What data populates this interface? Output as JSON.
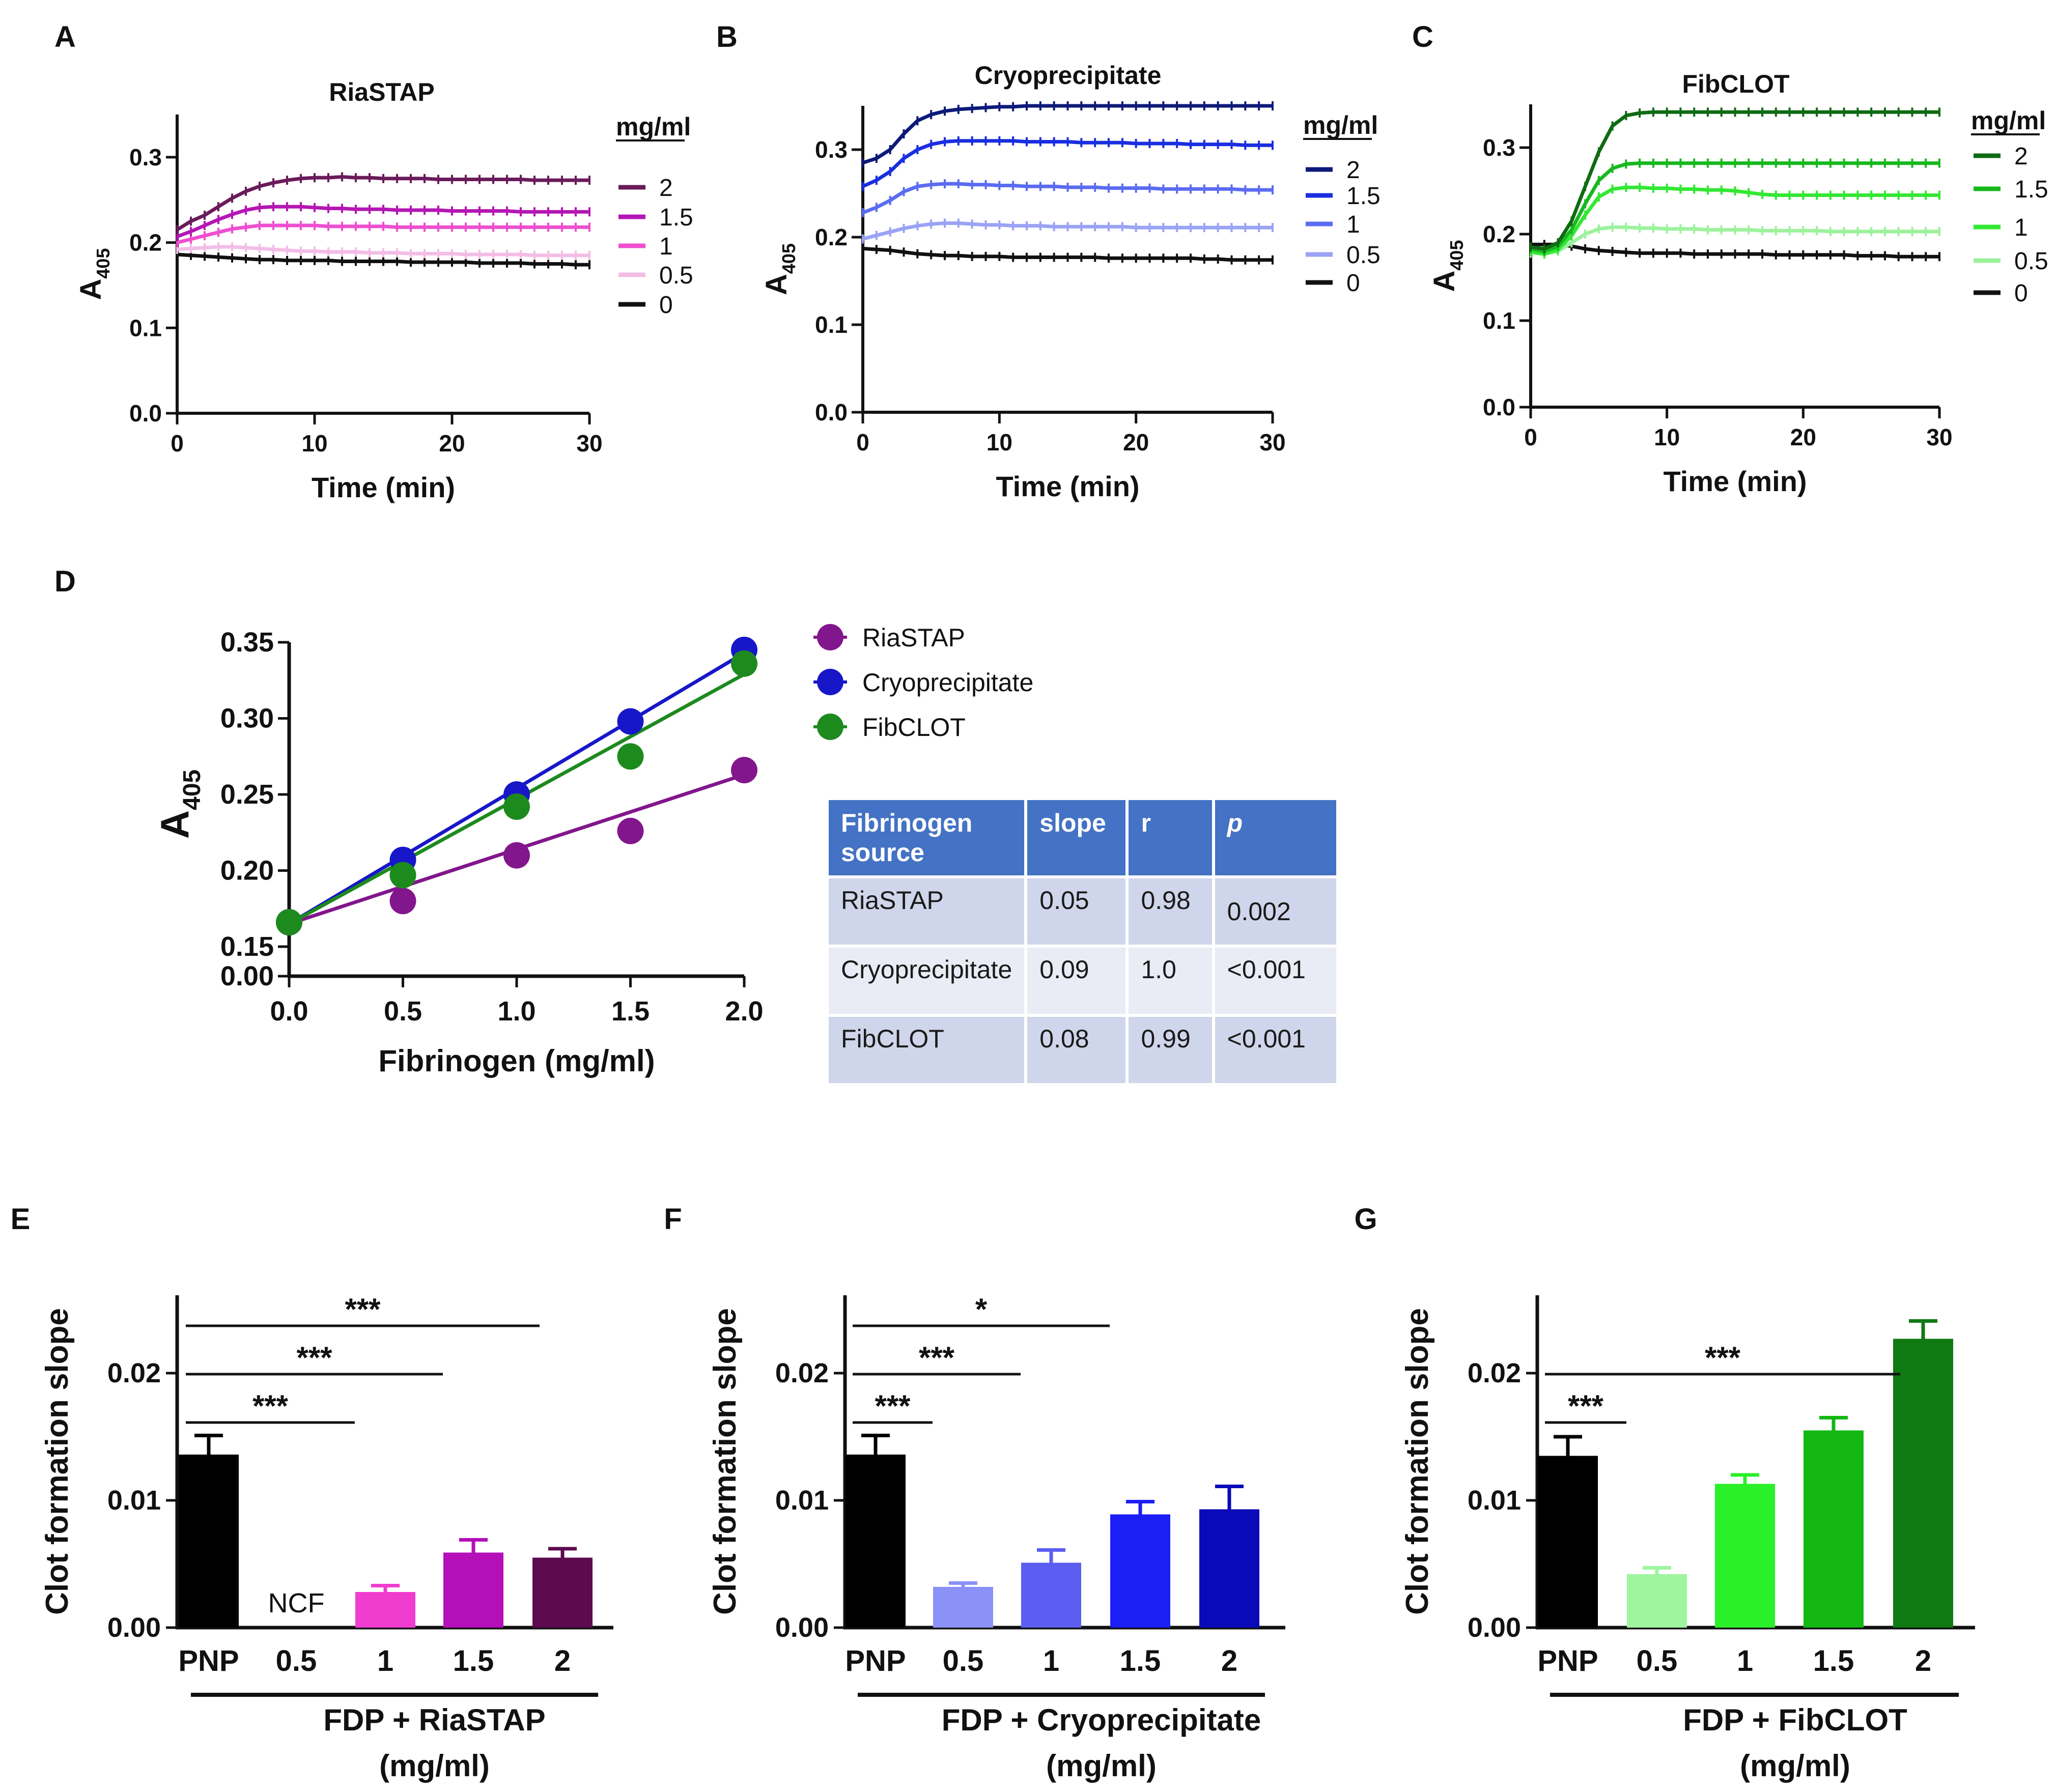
{
  "panel_letters": [
    "A",
    "B",
    "C",
    "D",
    "E",
    "F",
    "G"
  ],
  "chart_data": [
    {
      "id": "A",
      "type": "line",
      "title": "RiaSTAP",
      "xlabel": "Time (min)",
      "ylabel": "A405",
      "xlim": [
        0,
        30
      ],
      "ylim": [
        0,
        0.35
      ],
      "xticks": [
        "0",
        "10",
        "20",
        "30"
      ],
      "yticks": [
        "0.0",
        "0.1",
        "0.2",
        "0.3"
      ],
      "legend_title": "mg/ml",
      "x": [
        0,
        1,
        2,
        3,
        4,
        5,
        6,
        7,
        8,
        9,
        10,
        11,
        12,
        13,
        14,
        15,
        16,
        17,
        18,
        19,
        20,
        21,
        22,
        23,
        24,
        25,
        26,
        27,
        28,
        29,
        30
      ],
      "series": [
        {
          "name": "2",
          "color": "#6a1b5a",
          "values": [
            0.215,
            0.225,
            0.232,
            0.242,
            0.252,
            0.26,
            0.266,
            0.27,
            0.273,
            0.275,
            0.276,
            0.276,
            0.277,
            0.276,
            0.276,
            0.275,
            0.275,
            0.275,
            0.275,
            0.274,
            0.274,
            0.274,
            0.274,
            0.274,
            0.274,
            0.274,
            0.273,
            0.273,
            0.273,
            0.273,
            0.273
          ]
        },
        {
          "name": "1.5",
          "color": "#b416b4",
          "values": [
            0.207,
            0.213,
            0.22,
            0.227,
            0.233,
            0.238,
            0.241,
            0.242,
            0.242,
            0.242,
            0.241,
            0.24,
            0.24,
            0.239,
            0.239,
            0.239,
            0.238,
            0.238,
            0.238,
            0.238,
            0.237,
            0.237,
            0.237,
            0.237,
            0.237,
            0.236,
            0.236,
            0.236,
            0.236,
            0.236,
            0.236
          ]
        },
        {
          "name": "1",
          "color": "#ee4fcf",
          "values": [
            0.2,
            0.204,
            0.208,
            0.212,
            0.216,
            0.218,
            0.22,
            0.22,
            0.22,
            0.22,
            0.22,
            0.219,
            0.219,
            0.219,
            0.219,
            0.219,
            0.218,
            0.218,
            0.218,
            0.218,
            0.218,
            0.218,
            0.218,
            0.218,
            0.218,
            0.218,
            0.218,
            0.218,
            0.218,
            0.218,
            0.218
          ]
        },
        {
          "name": "0.5",
          "color": "#f3bde6",
          "values": [
            0.192,
            0.193,
            0.194,
            0.195,
            0.195,
            0.194,
            0.193,
            0.192,
            0.191,
            0.19,
            0.19,
            0.189,
            0.189,
            0.189,
            0.188,
            0.188,
            0.188,
            0.187,
            0.187,
            0.187,
            0.187,
            0.186,
            0.186,
            0.186,
            0.186,
            0.186,
            0.185,
            0.185,
            0.185,
            0.185,
            0.185
          ]
        },
        {
          "name": "0",
          "color": "#111111",
          "values": [
            0.186,
            0.185,
            0.184,
            0.183,
            0.182,
            0.181,
            0.18,
            0.18,
            0.179,
            0.179,
            0.179,
            0.179,
            0.178,
            0.178,
            0.178,
            0.178,
            0.178,
            0.177,
            0.177,
            0.177,
            0.177,
            0.177,
            0.176,
            0.176,
            0.176,
            0.176,
            0.175,
            0.175,
            0.175,
            0.174,
            0.174
          ]
        }
      ]
    },
    {
      "id": "B",
      "type": "line",
      "title": "Cryoprecipitate",
      "xlabel": "Time (min)",
      "ylabel": "A405",
      "xlim": [
        0,
        30
      ],
      "ylim": [
        0,
        0.35
      ],
      "xticks": [
        "0",
        "10",
        "20",
        "30"
      ],
      "yticks": [
        "0.0",
        "0.1",
        "0.2",
        "0.3"
      ],
      "legend_title": "mg/ml",
      "x": [
        0,
        1,
        2,
        3,
        4,
        5,
        6,
        7,
        8,
        9,
        10,
        11,
        12,
        13,
        14,
        15,
        16,
        17,
        18,
        19,
        20,
        21,
        22,
        23,
        24,
        25,
        26,
        27,
        28,
        29,
        30
      ],
      "series": [
        {
          "name": "2",
          "color": "#0d1a7a",
          "values": [
            0.285,
            0.29,
            0.3,
            0.318,
            0.333,
            0.34,
            0.344,
            0.346,
            0.347,
            0.348,
            0.349,
            0.349,
            0.35,
            0.35,
            0.35,
            0.35,
            0.35,
            0.35,
            0.35,
            0.35,
            0.35,
            0.35,
            0.35,
            0.35,
            0.35,
            0.35,
            0.35,
            0.35,
            0.35,
            0.35,
            0.35
          ]
        },
        {
          "name": "1.5",
          "color": "#1a2ee0",
          "values": [
            0.258,
            0.265,
            0.275,
            0.29,
            0.3,
            0.306,
            0.309,
            0.31,
            0.31,
            0.31,
            0.31,
            0.31,
            0.309,
            0.309,
            0.309,
            0.309,
            0.308,
            0.308,
            0.308,
            0.308,
            0.307,
            0.307,
            0.307,
            0.307,
            0.306,
            0.306,
            0.306,
            0.306,
            0.305,
            0.305,
            0.305
          ]
        },
        {
          "name": "1",
          "color": "#5a6cf2",
          "values": [
            0.228,
            0.234,
            0.242,
            0.252,
            0.258,
            0.26,
            0.261,
            0.261,
            0.26,
            0.26,
            0.259,
            0.259,
            0.258,
            0.258,
            0.258,
            0.257,
            0.257,
            0.257,
            0.256,
            0.256,
            0.256,
            0.256,
            0.255,
            0.255,
            0.255,
            0.255,
            0.255,
            0.255,
            0.254,
            0.254,
            0.254
          ]
        },
        {
          "name": "0.5",
          "color": "#9aa3f5",
          "values": [
            0.198,
            0.202,
            0.206,
            0.21,
            0.213,
            0.215,
            0.216,
            0.216,
            0.215,
            0.214,
            0.214,
            0.213,
            0.213,
            0.213,
            0.212,
            0.212,
            0.212,
            0.212,
            0.212,
            0.212,
            0.211,
            0.211,
            0.211,
            0.211,
            0.211,
            0.211,
            0.211,
            0.211,
            0.211,
            0.211,
            0.211
          ]
        },
        {
          "name": "0",
          "color": "#111111",
          "values": [
            0.187,
            0.186,
            0.185,
            0.183,
            0.181,
            0.18,
            0.179,
            0.179,
            0.178,
            0.178,
            0.178,
            0.177,
            0.177,
            0.177,
            0.177,
            0.177,
            0.177,
            0.177,
            0.176,
            0.176,
            0.176,
            0.176,
            0.176,
            0.176,
            0.176,
            0.175,
            0.175,
            0.174,
            0.174,
            0.174,
            0.174
          ]
        }
      ]
    },
    {
      "id": "C",
      "type": "line",
      "title": "FibCLOT",
      "xlabel": "Time (min)",
      "ylabel": "A405",
      "xlim": [
        0,
        30
      ],
      "ylim": [
        0,
        0.35
      ],
      "xticks": [
        "0",
        "10",
        "20",
        "30"
      ],
      "yticks": [
        "0.0",
        "0.1",
        "0.2",
        "0.3"
      ],
      "legend_title": "mg/ml",
      "x": [
        0,
        1,
        2,
        3,
        4,
        5,
        6,
        7,
        8,
        9,
        10,
        11,
        12,
        13,
        14,
        15,
        16,
        17,
        18,
        19,
        20,
        21,
        22,
        23,
        24,
        25,
        26,
        27,
        28,
        29,
        30
      ],
      "series": [
        {
          "name": "2",
          "color": "#0e6b12",
          "values": [
            0.185,
            0.183,
            0.19,
            0.215,
            0.255,
            0.295,
            0.325,
            0.337,
            0.34,
            0.341,
            0.341,
            0.341,
            0.341,
            0.341,
            0.341,
            0.341,
            0.341,
            0.341,
            0.341,
            0.341,
            0.341,
            0.341,
            0.341,
            0.341,
            0.341,
            0.341,
            0.341,
            0.341,
            0.341,
            0.341,
            0.341
          ]
        },
        {
          "name": "1.5",
          "color": "#18b81e",
          "values": [
            0.183,
            0.18,
            0.186,
            0.205,
            0.235,
            0.262,
            0.276,
            0.281,
            0.282,
            0.282,
            0.282,
            0.282,
            0.282,
            0.282,
            0.282,
            0.282,
            0.282,
            0.282,
            0.282,
            0.282,
            0.282,
            0.282,
            0.282,
            0.282,
            0.282,
            0.282,
            0.282,
            0.282,
            0.282,
            0.282,
            0.282
          ]
        },
        {
          "name": "1",
          "color": "#32e832",
          "values": [
            0.18,
            0.177,
            0.182,
            0.198,
            0.222,
            0.243,
            0.252,
            0.254,
            0.254,
            0.253,
            0.253,
            0.252,
            0.252,
            0.251,
            0.251,
            0.25,
            0.248,
            0.246,
            0.245,
            0.245,
            0.245,
            0.245,
            0.245,
            0.245,
            0.245,
            0.245,
            0.245,
            0.245,
            0.245,
            0.245,
            0.245
          ]
        },
        {
          "name": "0.5",
          "color": "#9cf29c",
          "values": [
            0.178,
            0.177,
            0.18,
            0.19,
            0.2,
            0.206,
            0.208,
            0.208,
            0.207,
            0.207,
            0.206,
            0.206,
            0.206,
            0.205,
            0.205,
            0.205,
            0.205,
            0.204,
            0.204,
            0.204,
            0.204,
            0.204,
            0.203,
            0.203,
            0.203,
            0.203,
            0.203,
            0.203,
            0.203,
            0.203,
            0.203
          ]
        },
        {
          "name": "0",
          "color": "#111111",
          "values": [
            0.188,
            0.188,
            0.188,
            0.186,
            0.183,
            0.181,
            0.18,
            0.179,
            0.178,
            0.178,
            0.178,
            0.178,
            0.177,
            0.177,
            0.177,
            0.177,
            0.177,
            0.177,
            0.176,
            0.176,
            0.176,
            0.176,
            0.176,
            0.176,
            0.175,
            0.175,
            0.175,
            0.174,
            0.174,
            0.174,
            0.174
          ]
        }
      ]
    },
    {
      "id": "D",
      "type": "scatter",
      "xlabel": "Fibrinogen (mg/ml)",
      "ylabel": "A405",
      "xlim": [
        0,
        2
      ],
      "ylim": [
        0,
        0.35
      ],
      "xticks": [
        "0.0",
        "0.5",
        "1.0",
        "1.5",
        "2.0"
      ],
      "yticks": [
        "0.00",
        "0.15",
        "0.20",
        "0.25",
        "0.30",
        "0.35"
      ],
      "x": [
        0,
        0.5,
        1,
        1.5,
        2
      ],
      "series": [
        {
          "name": "RiaSTAP",
          "color": "#82168c",
          "values": [
            0.166,
            0.18,
            0.21,
            0.226,
            0.266
          ],
          "fit": [
            0.165,
            0.263
          ]
        },
        {
          "name": "Cryoprecipitate",
          "color": "#1717c9",
          "values": [
            0.166,
            0.207,
            0.25,
            0.298,
            0.345
          ],
          "fit": [
            0.165,
            0.343
          ]
        },
        {
          "name": "FibCLOT",
          "color": "#1d8a1d",
          "values": [
            0.166,
            0.197,
            0.242,
            0.275,
            0.336
          ],
          "fit": [
            0.165,
            0.329
          ]
        }
      ],
      "table": {
        "headers": [
          "Fibrinogen source",
          "slope",
          "r",
          "p"
        ],
        "rows": [
          [
            "RiaSTAP",
            "0.05",
            "0.98",
            "0.002"
          ],
          [
            "Cryoprecipitate",
            "0.09",
            "1.0",
            "<0.001"
          ],
          [
            "FibCLOT",
            "0.08",
            "0.99",
            "<0.001"
          ]
        ]
      }
    },
    {
      "id": "E",
      "type": "bar",
      "ylabel": "Clot formation slope",
      "ylim": [
        0,
        0.025
      ],
      "yticks": [
        "0.00",
        "0.01",
        "0.02"
      ],
      "categories": [
        "PNP",
        "0.5",
        "1",
        "1.5",
        "2"
      ],
      "values": [
        0.0136,
        0,
        0.0028,
        0.0059,
        0.0055
      ],
      "errors": [
        0.0015,
        0,
        0.0005,
        0.001,
        0.0007
      ],
      "colors": [
        "#000000",
        "#ffffff",
        "#f03ccf",
        "#b40fb8",
        "#5e0a4f"
      ],
      "bar_labels": [
        "",
        "NCF",
        "",
        "",
        ""
      ],
      "group_label": "FDP + RiaSTAP",
      "group_unit": "(mg/ml)",
      "significance": [
        {
          "from": 0,
          "to": 2,
          "label": "***"
        },
        {
          "from": 0,
          "to": 3,
          "label": "***"
        },
        {
          "from": 0,
          "to": 4,
          "label": "***"
        }
      ]
    },
    {
      "id": "F",
      "type": "bar",
      "ylabel": "Clot formation slope",
      "ylim": [
        0,
        0.025
      ],
      "yticks": [
        "0.00",
        "0.01",
        "0.02"
      ],
      "categories": [
        "PNP",
        "0.5",
        "1",
        "1.5",
        "2"
      ],
      "values": [
        0.0136,
        0.0032,
        0.0051,
        0.0089,
        0.0093
      ],
      "errors": [
        0.0015,
        0.0003,
        0.001,
        0.001,
        0.0018
      ],
      "colors": [
        "#000000",
        "#8a91f7",
        "#5b5ef0",
        "#1b1ff5",
        "#0a0ab8"
      ],
      "bar_labels": [
        "",
        "",
        "",
        "",
        ""
      ],
      "group_label": "FDP + Cryoprecipitate",
      "group_unit": "(mg/ml)",
      "significance": [
        {
          "from": 0,
          "to": 1,
          "label": "***"
        },
        {
          "from": 0,
          "to": 2,
          "label": "***"
        },
        {
          "from": 0,
          "to": 3,
          "label": "*"
        }
      ]
    },
    {
      "id": "G",
      "type": "bar",
      "ylabel": "Clot formation slope",
      "ylim": [
        0,
        0.025
      ],
      "yticks": [
        "0.00",
        "0.01",
        "0.02"
      ],
      "categories": [
        "PNP",
        "0.5",
        "1",
        "1.5",
        "2"
      ],
      "values": [
        0.0135,
        0.0042,
        0.0113,
        0.0155,
        0.0227
      ],
      "errors": [
        0.0015,
        0.0005,
        0.0007,
        0.001,
        0.0014
      ],
      "colors": [
        "#000000",
        "#9ef59e",
        "#2af02a",
        "#13b813",
        "#0f7a12"
      ],
      "bar_labels": [
        "",
        "",
        "",
        "",
        ""
      ],
      "group_label": "FDP + FibCLOT",
      "group_unit": "(mg/ml)",
      "significance": [
        {
          "from": 0,
          "to": 1,
          "label": "***"
        },
        {
          "from": 0,
          "to": 4,
          "label": "***"
        }
      ]
    }
  ]
}
